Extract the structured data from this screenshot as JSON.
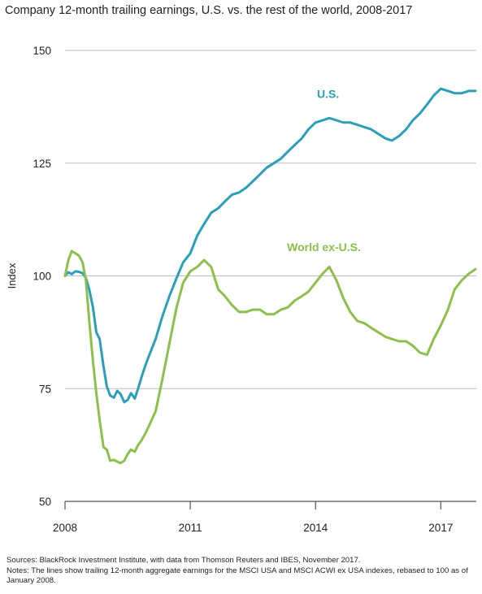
{
  "chart_data": {
    "type": "line",
    "title": "Company 12-month trailing earnings, U.S. vs. the rest of the world, 2008-2017",
    "ylabel": "Index",
    "xlabel": "",
    "ylim": [
      50,
      150
    ],
    "yticks": [
      50,
      75,
      100,
      125,
      150
    ],
    "xlim": [
      2008,
      2017.85
    ],
    "xticks": [
      2008,
      2011,
      2014,
      2017
    ],
    "grid": "horizontal",
    "series": [
      {
        "name": "U.S.",
        "color": "#2aa0b8",
        "x": [
          2008.0,
          2008.08,
          2008.16,
          2008.25,
          2008.33,
          2008.42,
          2008.5,
          2008.58,
          2008.67,
          2008.75,
          2008.83,
          2008.92,
          2009.0,
          2009.08,
          2009.17,
          2009.25,
          2009.33,
          2009.42,
          2009.5,
          2009.58,
          2009.67,
          2009.75,
          2009.83,
          2009.92,
          2010.0,
          2010.17,
          2010.33,
          2010.5,
          2010.67,
          2010.83,
          2011.0,
          2011.17,
          2011.33,
          2011.5,
          2011.67,
          2011.83,
          2012.0,
          2012.17,
          2012.33,
          2012.5,
          2012.67,
          2012.83,
          2013.0,
          2013.17,
          2013.33,
          2013.5,
          2013.67,
          2013.83,
          2014.0,
          2014.17,
          2014.33,
          2014.5,
          2014.67,
          2014.83,
          2015.0,
          2015.17,
          2015.33,
          2015.5,
          2015.67,
          2015.83,
          2016.0,
          2016.17,
          2016.33,
          2016.5,
          2016.67,
          2016.83,
          2017.0,
          2017.17,
          2017.33,
          2017.5,
          2017.67,
          2017.83
        ],
        "values": [
          100.0,
          100.8,
          100.4,
          101.0,
          100.9,
          100.6,
          99.5,
          97.0,
          93.0,
          87.5,
          86.0,
          80.0,
          75.5,
          73.5,
          73.0,
          74.5,
          73.8,
          72.0,
          72.5,
          74.0,
          72.8,
          75.0,
          77.5,
          80.0,
          82.0,
          86.0,
          91.0,
          95.5,
          99.5,
          103.0,
          105.0,
          109.0,
          111.5,
          114.0,
          115.0,
          116.5,
          118.0,
          118.5,
          119.5,
          121.0,
          122.5,
          124.0,
          125.0,
          126.0,
          127.5,
          129.0,
          130.5,
          132.5,
          134.0,
          134.5,
          135.0,
          134.5,
          134.0,
          134.0,
          133.5,
          133.0,
          132.5,
          131.5,
          130.5,
          130.0,
          131.0,
          132.5,
          134.5,
          136.0,
          138.0,
          140.0,
          141.5,
          141.0,
          140.5,
          140.5,
          141.0,
          141.0
        ]
      },
      {
        "name": "World ex-U.S.",
        "color": "#8cc04a",
        "x": [
          2008.0,
          2008.08,
          2008.16,
          2008.25,
          2008.33,
          2008.42,
          2008.5,
          2008.58,
          2008.67,
          2008.75,
          2008.83,
          2008.92,
          2009.0,
          2009.08,
          2009.17,
          2009.25,
          2009.33,
          2009.42,
          2009.5,
          2009.58,
          2009.67,
          2009.75,
          2009.83,
          2009.92,
          2010.0,
          2010.17,
          2010.33,
          2010.5,
          2010.67,
          2010.83,
          2011.0,
          2011.17,
          2011.33,
          2011.5,
          2011.67,
          2011.83,
          2012.0,
          2012.17,
          2012.33,
          2012.5,
          2012.67,
          2012.83,
          2013.0,
          2013.17,
          2013.33,
          2013.5,
          2013.67,
          2013.83,
          2014.0,
          2014.17,
          2014.33,
          2014.5,
          2014.67,
          2014.83,
          2015.0,
          2015.17,
          2015.33,
          2015.5,
          2015.67,
          2015.83,
          2016.0,
          2016.17,
          2016.33,
          2016.5,
          2016.67,
          2016.83,
          2017.0,
          2017.17,
          2017.33,
          2017.5,
          2017.67,
          2017.83
        ],
        "values": [
          100.0,
          103.5,
          105.5,
          105.0,
          104.5,
          103.0,
          99.0,
          90.0,
          81.0,
          74.0,
          68.0,
          62.0,
          61.5,
          59.0,
          59.2,
          58.8,
          58.5,
          59.0,
          60.5,
          61.5,
          61.0,
          62.5,
          63.5,
          65.0,
          66.5,
          70.0,
          77.0,
          85.0,
          93.0,
          98.5,
          101.0,
          102.0,
          103.5,
          102.0,
          97.0,
          95.5,
          93.5,
          92.0,
          92.0,
          92.5,
          92.5,
          91.5,
          91.5,
          92.5,
          93.0,
          94.5,
          95.5,
          96.5,
          98.5,
          100.5,
          102.0,
          99.0,
          95.0,
          92.0,
          90.0,
          89.5,
          88.5,
          87.5,
          86.5,
          86.0,
          85.5,
          85.5,
          84.5,
          83.0,
          82.5,
          86.0,
          89.0,
          92.5,
          97.0,
          99.0,
          100.5,
          101.5
        ]
      }
    ],
    "annotations": [
      {
        "text": "U.S.",
        "series": "U.S.",
        "x": 2014.3,
        "y": 139.5
      },
      {
        "text": "World ex-U.S.",
        "series": "World ex-U.S.",
        "x": 2014.2,
        "y": 105.5
      }
    ]
  },
  "footer": {
    "sources": "Sources: BlackRock Investment Institute, with data from Thomson Reuters and IBES, November 2017.",
    "notes": "Notes: The lines show trailing 12-month aggregate earnings for the MSCI USA and MSCI ACWI ex USA indexes, rebased to 100 as of January 2008."
  }
}
